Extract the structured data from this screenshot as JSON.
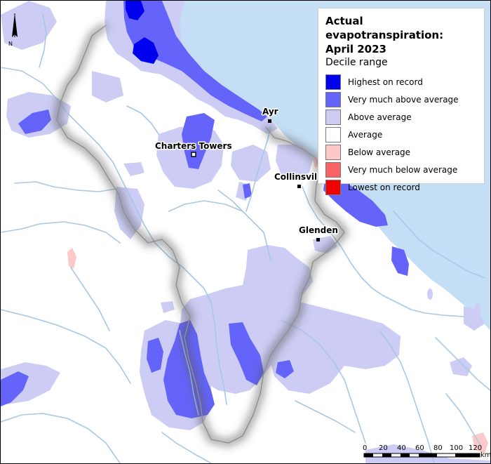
{
  "legend": {
    "title_line1": "Actual evapotranspiration:",
    "title_line2": "April 2023",
    "subtitle": "Decile range",
    "items": [
      {
        "label": "Highest on record",
        "color": "#0000ee"
      },
      {
        "label": "Very much above average",
        "color": "#6464fa"
      },
      {
        "label": "Above average",
        "color": "#ccccf5"
      },
      {
        "label": "Average",
        "color": "#ffffff"
      },
      {
        "label": "Below average",
        "color": "#fdc8c8"
      },
      {
        "label": "Very much below average",
        "color": "#fa6464"
      },
      {
        "label": "Lowest on record",
        "color": "#f00000"
      }
    ]
  },
  "towns": {
    "ayr": "Ayr",
    "charters_towers": "Charters Towers",
    "collinsville": "Collinsvil",
    "glenden": "Glenden"
  },
  "north_arrow": {
    "label": "N"
  },
  "scale_bar": {
    "ticks": [
      "0",
      "20",
      "40",
      "60",
      "80",
      "100",
      "120"
    ],
    "unit": "km"
  },
  "colors": {
    "sea": "#c4def5",
    "land": "#ffffff",
    "rivers": "#a8c8e3",
    "border": "#9a9a9a"
  }
}
